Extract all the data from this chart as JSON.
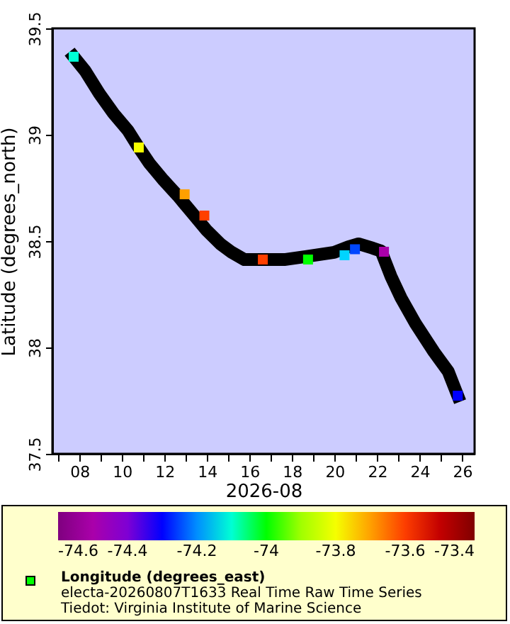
{
  "chart_data": {
    "type": "scatter",
    "xlabel": "2026-08",
    "ylabel": "Latitude (degrees_north)",
    "clabel": "Longitude (degrees_east)",
    "annotations": [
      "electa-20260807T1633 Real Time Raw Time Series",
      "Tiedot: Virginia Institute of Marine Science"
    ],
    "xlim": [
      "2026-08-06T17:30",
      "2026-08-26T14:00"
    ],
    "xticks": [
      {
        "value": "2026-08-07",
        "label": null
      },
      {
        "value": "2026-08-08",
        "label": "08"
      },
      {
        "value": "2026-08-09",
        "label": null
      },
      {
        "value": "2026-08-10",
        "label": "10"
      },
      {
        "value": "2026-08-11",
        "label": null
      },
      {
        "value": "2026-08-12",
        "label": "12"
      },
      {
        "value": "2026-08-13",
        "label": null
      },
      {
        "value": "2026-08-14",
        "label": "14"
      },
      {
        "value": "2026-08-15",
        "label": null
      },
      {
        "value": "2026-08-16",
        "label": "16"
      },
      {
        "value": "2026-08-17",
        "label": null
      },
      {
        "value": "2026-08-18",
        "label": "18"
      },
      {
        "value": "2026-08-19",
        "label": null
      },
      {
        "value": "2026-08-20",
        "label": "20"
      },
      {
        "value": "2026-08-21",
        "label": null
      },
      {
        "value": "2026-08-22",
        "label": "22"
      },
      {
        "value": "2026-08-23",
        "label": null
      },
      {
        "value": "2026-08-24",
        "label": "24"
      },
      {
        "value": "2026-08-25",
        "label": null
      },
      {
        "value": "2026-08-26",
        "label": "26"
      }
    ],
    "ylim": [
      37.5,
      39.5
    ],
    "yticks": [
      37.5,
      38,
      38.5,
      39,
      39.5
    ],
    "clim": [
      -74.6,
      -73.4
    ],
    "cticks": [
      -74.6,
      -74.4,
      -74.2,
      -74,
      -73.8,
      -73.6,
      -73.4
    ],
    "line_style": "solid",
    "series": [
      {
        "type": "line",
        "color": "#000000",
        "x": [
          "2026-08-07T17:30",
          "2026-08-08T06:30",
          "2026-08-08T22:30",
          "2026-08-09T14:30",
          "2026-08-10T06:45",
          "2026-08-10T17:45",
          "2026-08-11T06:45",
          "2026-08-11T22:45",
          "2026-08-12T15:00",
          "2026-08-13T07:00",
          "2026-08-13T23:00",
          "2026-08-14T15:00",
          "2026-08-15T04:00",
          "2026-08-15T18:15",
          "2026-08-16T10:15",
          "2026-08-17T15:15",
          "2026-08-18T15:15",
          "2026-08-19T23:30",
          "2026-08-20T15:30",
          "2026-08-21T03:00",
          "2026-08-21T19:00",
          "2026-08-22T04:30",
          "2026-08-22T15:45",
          "2026-08-23T03:00",
          "2026-08-23T19:15",
          "2026-08-24T16:00",
          "2026-08-25T08:15",
          "2026-08-25T19:00"
        ],
        "values": [
          39.367,
          39.3,
          39.193,
          39.1,
          39.02,
          38.947,
          38.867,
          38.787,
          38.713,
          38.633,
          38.553,
          38.487,
          38.447,
          38.413,
          38.413,
          38.413,
          38.427,
          38.447,
          38.473,
          38.487,
          38.467,
          38.453,
          38.333,
          38.233,
          38.113,
          37.98,
          37.887,
          37.773
        ]
      },
      {
        "type": "scatter",
        "marker": "square",
        "x": [
          "2026-08-07T17:30",
          "2026-08-10T19:00",
          "2026-08-12T22:45",
          "2026-08-13T21:00",
          "2026-08-16T15:00",
          "2026-08-18T18:00",
          "2026-08-20T11:15",
          "2026-08-20T23:00",
          "2026-08-22T07:45",
          "2026-08-25T19:00"
        ],
        "values": [
          39.367,
          38.94,
          38.72,
          38.62,
          38.413,
          38.413,
          38.433,
          38.462,
          38.45,
          37.773
        ],
        "cvalues": [
          -74.1,
          -73.8,
          -73.7,
          -73.6,
          -73.6,
          -74.0,
          -74.15,
          -74.25,
          -74.5,
          -74.3
        ],
        "colors": [
          "#00ffd5",
          "#f5ff00",
          "#ffa000",
          "#ff4000",
          "#ff4000",
          "#00ff00",
          "#00d4ff",
          "#0047ff",
          "#aa00aa",
          "#0000ff"
        ]
      }
    ]
  }
}
